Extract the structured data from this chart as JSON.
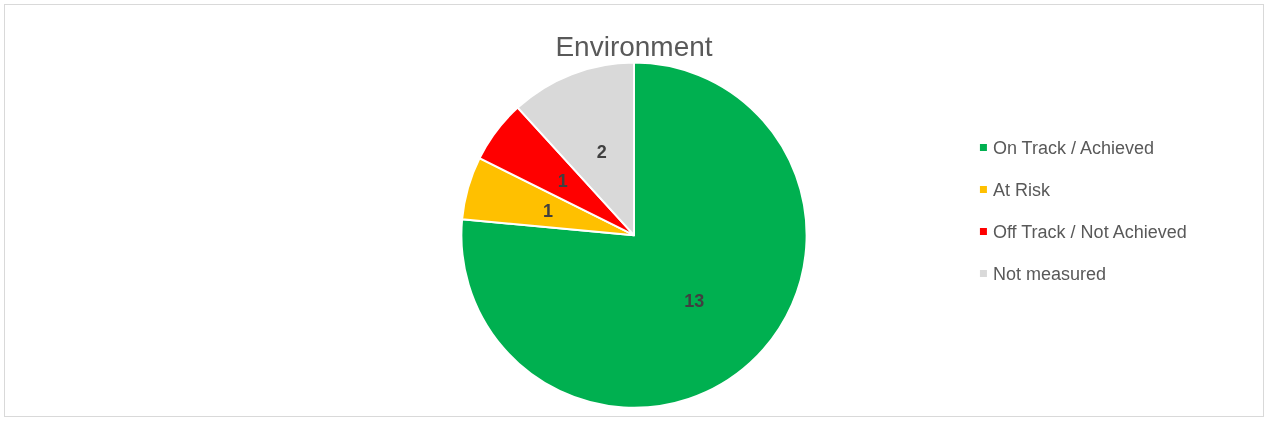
{
  "chart_data": {
    "type": "pie",
    "title": "Environment",
    "categories": [
      "On Track / Achieved",
      "At Risk",
      "Off Track / Not Achieved",
      "Not measured"
    ],
    "values": [
      13,
      1,
      1,
      2
    ],
    "colors": [
      "#00b050",
      "#ffc000",
      "#ff0000",
      "#d9d9d9"
    ],
    "data_labels": true,
    "legend": "right"
  }
}
